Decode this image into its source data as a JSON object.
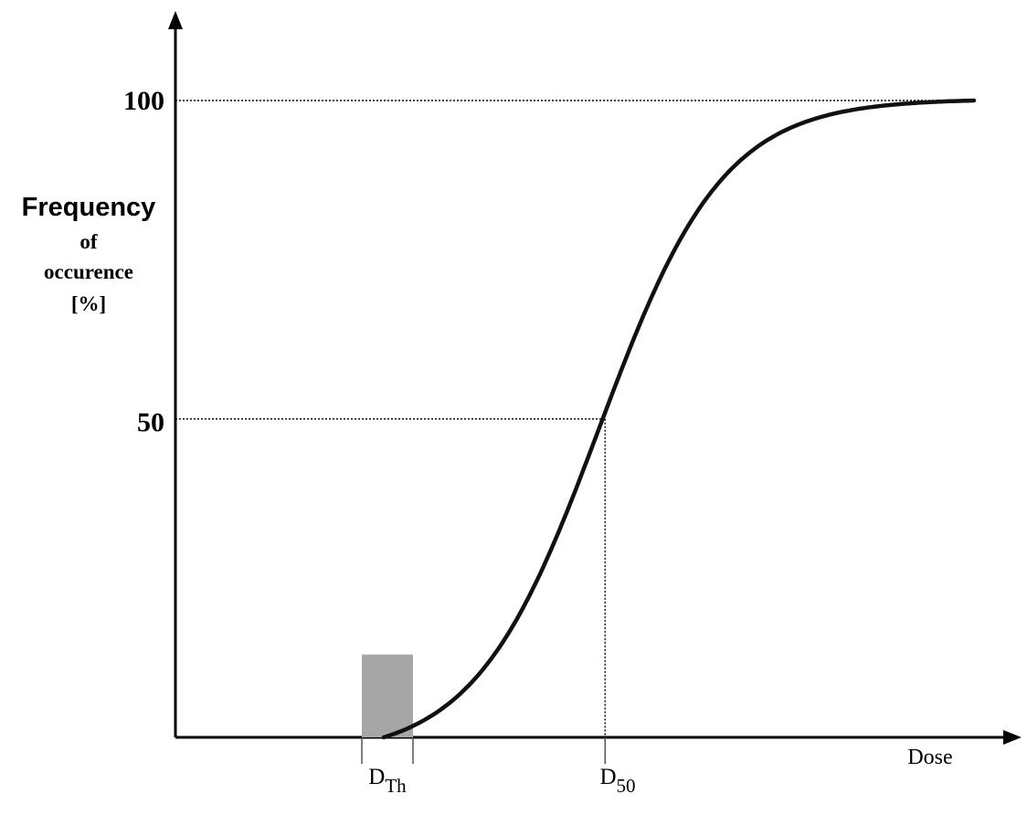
{
  "chart_data": {
    "type": "line",
    "ylabel_lines": [
      "Frequency",
      "of",
      "occurence",
      "[%]"
    ],
    "xlabel": "Dose",
    "y_ticks": [
      {
        "value": 100,
        "label": "100"
      },
      {
        "value": 50,
        "label": "50"
      }
    ],
    "x_markers": [
      {
        "name": "threshold",
        "main": "D",
        "sub": "Th"
      },
      {
        "name": "d50",
        "main": "D",
        "sub": "50"
      }
    ],
    "ylim": [
      0,
      100
    ],
    "grid": false,
    "legend": "none",
    "series": [
      {
        "type": "sigmoid",
        "x": [
          0,
          0.1,
          0.2,
          0.3,
          0.4,
          0.5,
          0.6,
          0.7,
          0.8,
          0.9,
          1.0
        ],
        "values": [
          0,
          2.5,
          9.5,
          20,
          34,
          50,
          66,
          80,
          90.5,
          97.5,
          100
        ]
      }
    ],
    "threshold_band": {
      "height_percent": 13
    },
    "colors": {
      "curve": "#111111",
      "band": "#a6a6a6",
      "axis": "#000000"
    }
  }
}
